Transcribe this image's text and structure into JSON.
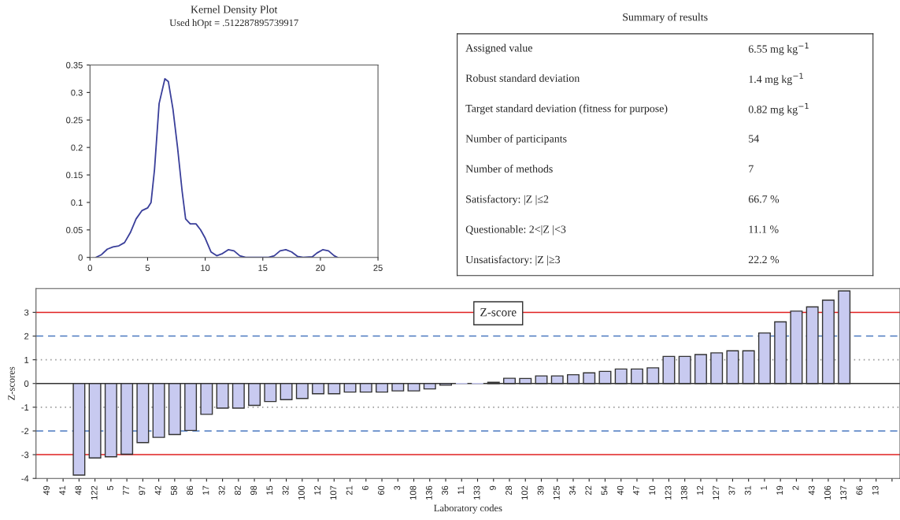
{
  "chart_data": [
    {
      "type": "line",
      "title": "Kernel Density Plot",
      "subtitle": "Used hOpt = .512287895739917",
      "x": [
        0.5,
        1,
        1.5,
        2,
        2.5,
        3,
        3.5,
        4,
        4.5,
        5,
        5.3,
        5.6,
        6,
        6.5,
        6.8,
        7.2,
        7.6,
        8,
        8.3,
        8.7,
        9.2,
        9.6,
        10,
        10.5,
        11,
        11.5,
        12,
        12.5,
        13,
        13.5,
        15.5,
        16,
        16.5,
        17,
        17.5,
        18,
        18.5,
        19.3,
        19.7,
        20.2,
        20.7,
        21.2,
        21.5
      ],
      "series": [
        {
          "color": "#3a3f9a",
          "values": [
            0,
            0.005,
            0.015,
            0.019,
            0.021,
            0.027,
            0.045,
            0.07,
            0.085,
            0.09,
            0.1,
            0.16,
            0.28,
            0.325,
            0.32,
            0.27,
            0.2,
            0.12,
            0.07,
            0.061,
            0.061,
            0.05,
            0.035,
            0.01,
            0.003,
            0.007,
            0.014,
            0.012,
            0.003,
            0,
            0,
            0.003,
            0.012,
            0.014,
            0.01,
            0.002,
            0,
            0.001,
            0.008,
            0.014,
            0.012,
            0.003,
            0
          ]
        }
      ],
      "xlim": [
        0,
        25
      ],
      "xticks": [
        0,
        5,
        10,
        15,
        20,
        25
      ],
      "ylim": [
        0,
        0.35
      ],
      "yticks": [
        0,
        0.05,
        0.1,
        0.15,
        0.2,
        0.25,
        0.3,
        0.35
      ],
      "grid": false,
      "legend": false,
      "marker": "none",
      "line_style": "solid"
    },
    {
      "type": "other",
      "title": "Summary of results",
      "annotations": [
        "Assigned value",
        "6.55 mg kg$^{−1}$",
        "Robust standard deviation",
        "1.4 mg kg$^{−1}$",
        "Target standard deviation (fitness for purpose)",
        "0.82 mg kg$^{−1}$",
        "Number of participants",
        "54",
        "Number of methods",
        "7",
        "Satisfactory: |Z |≤2",
        "66.7 %",
        "Questionable: 2<|Z |<3",
        "11.1 %",
        "Unsatisfactory: |Z |≥3",
        "22.2 %"
      ]
    },
    {
      "type": "bar",
      "xlabel": "Laboratory codes",
      "ylabel": "Z-scores",
      "annotations": [
        "Z-score"
      ],
      "categories": [
        "49",
        "41",
        "48",
        "122",
        "5",
        "77",
        "97",
        "42",
        "58",
        "86",
        "17",
        "32",
        "82",
        "98",
        "15",
        "32",
        "100",
        "12",
        "107",
        "21",
        "6",
        "60",
        "3",
        "108",
        "136",
        "36",
        "11",
        "133",
        "9",
        "28",
        "102",
        "39",
        "125",
        "34",
        "22",
        "54",
        "40",
        "47",
        "10",
        "123",
        "138",
        "12",
        "127",
        "37",
        "31",
        "1",
        "19",
        "2",
        "43",
        "106",
        "137",
        "66",
        "13",
        null
      ],
      "values": [
        null,
        null,
        -3.86,
        -3.14,
        -3.09,
        -2.98,
        -2.49,
        -2.27,
        -2.15,
        -1.98,
        -1.3,
        -1.04,
        -1.04,
        -0.92,
        -0.76,
        -0.68,
        -0.63,
        -0.43,
        -0.43,
        -0.36,
        -0.36,
        -0.36,
        -0.31,
        -0.31,
        -0.23,
        -0.07,
        0,
        0,
        0.05,
        0.22,
        0.21,
        0.32,
        0.32,
        0.37,
        0.45,
        0.51,
        0.61,
        0.61,
        0.66,
        1.14,
        1.14,
        1.22,
        1.29,
        1.38,
        1.38,
        2.13,
        2.6,
        3.05,
        3.23,
        3.51,
        3.9,
        null,
        null,
        null
      ],
      "color": "#c8caf0",
      "ylim": [
        -4,
        4
      ],
      "yticks": [
        -4,
        -3,
        -2,
        -1,
        0,
        1,
        2,
        3
      ],
      "grid": false,
      "legend": false,
      "ref_lines": [
        {
          "axis": "y",
          "value": 3,
          "color": "#e02020",
          "line_style": "solid"
        },
        {
          "axis": "y",
          "value": -3,
          "color": "#e02020",
          "line_style": "solid"
        },
        {
          "axis": "y",
          "value": 2,
          "color": "#4a78c0",
          "line_style": "dashed"
        },
        {
          "axis": "y",
          "value": -2,
          "color": "#4a78c0",
          "line_style": "dashed"
        },
        {
          "axis": "y",
          "value": 1,
          "color": "#999999",
          "line_style": "dotted"
        },
        {
          "axis": "y",
          "value": -1,
          "color": "#999999",
          "line_style": "dotted"
        }
      ]
    }
  ]
}
